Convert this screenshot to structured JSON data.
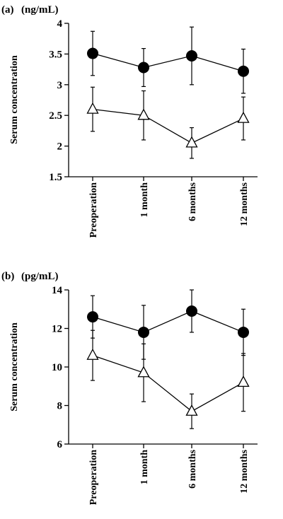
{
  "chart_data": [
    {
      "type": "line",
      "panel_label": "(a)",
      "unit": "(ng/mL)",
      "ylabel": "Serum concentration",
      "categories": [
        "Preoperation",
        "1 month",
        "6 months",
        "12 months"
      ],
      "ylim": [
        1.5,
        4
      ],
      "yticks": [
        "1.5",
        "2",
        "2.5",
        "3",
        "3.5",
        "4"
      ],
      "series": [
        {
          "marker": "filled-circle",
          "values": [
            3.51,
            3.28,
            3.47,
            3.22
          ],
          "err": [
            0.36,
            0.31,
            0.47,
            0.36
          ]
        },
        {
          "marker": "open-triangle",
          "values": [
            2.6,
            2.5,
            2.05,
            2.45
          ],
          "err": [
            0.36,
            0.4,
            0.25,
            0.35
          ]
        }
      ]
    },
    {
      "type": "line",
      "panel_label": "(b)",
      "unit": "(pg/mL)",
      "ylabel": "Serum concentration",
      "categories": [
        "Preoperation",
        "1 month",
        "6 months",
        "12 months"
      ],
      "ylim": [
        6,
        14
      ],
      "yticks": [
        "6",
        "8",
        "10",
        "12",
        "14"
      ],
      "series": [
        {
          "marker": "filled-circle",
          "values": [
            12.6,
            11.8,
            12.9,
            11.8
          ],
          "err": [
            1.1,
            1.4,
            1.1,
            1.2
          ]
        },
        {
          "marker": "open-triangle",
          "values": [
            10.6,
            9.7,
            7.7,
            9.2
          ],
          "err": [
            1.3,
            1.5,
            0.9,
            1.5
          ]
        }
      ]
    }
  ]
}
